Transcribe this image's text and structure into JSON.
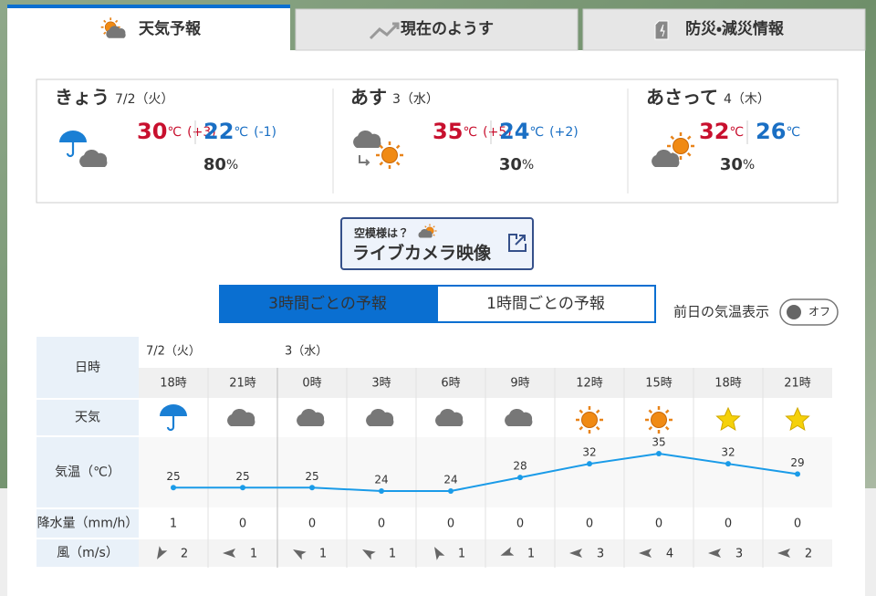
{
  "tabs": [
    "天気予報",
    "現在のようす",
    "防災・減災情報"
  ],
  "temp_unit": "℃",
  "pop_unit": "%",
  "days": [
    {
      "name": "きょう",
      "date": "7/2（火）",
      "high": 30,
      "high_diff": "(+3)",
      "low": 22,
      "low_diff": "(-1)",
      "pop": 80
    },
    {
      "name": "あす",
      "date": "3（水）",
      "high": 35,
      "high_diff": "(+5)",
      "low": 24,
      "low_diff": "(+2)",
      "pop": 30
    },
    {
      "name": "あさって",
      "date": "4（木）",
      "high": 32,
      "low": 26,
      "pop": 30
    }
  ],
  "live_camera": {
    "caption": "空模様は？",
    "label": "ライブカメラ映像"
  },
  "modes": [
    "3時間ごとの予報",
    "1時間ごとの予報"
  ],
  "prev_toggle": {
    "label": "前日の気温表示",
    "state": "オフ"
  },
  "table": {
    "row_labels": [
      "日時",
      "天気",
      "気温（℃）",
      "降水量（mm/h）",
      "風（m/s）"
    ],
    "dates": [
      "7/2（火）",
      null,
      "3（水）",
      null,
      null,
      null,
      null,
      null,
      null,
      null
    ],
    "hours": [
      "18時",
      "21時",
      "0時",
      "3時",
      "6時",
      "9時",
      "12時",
      "15時",
      "18時",
      "21時"
    ],
    "temps": [
      25,
      25,
      25,
      24,
      24,
      28,
      32,
      35,
      32,
      29
    ],
    "precip": [
      1,
      0,
      0,
      0,
      0,
      0,
      0,
      0,
      0,
      0
    ],
    "wind": [
      2,
      1,
      1,
      1,
      1,
      1,
      3,
      4,
      3,
      2
    ]
  }
}
